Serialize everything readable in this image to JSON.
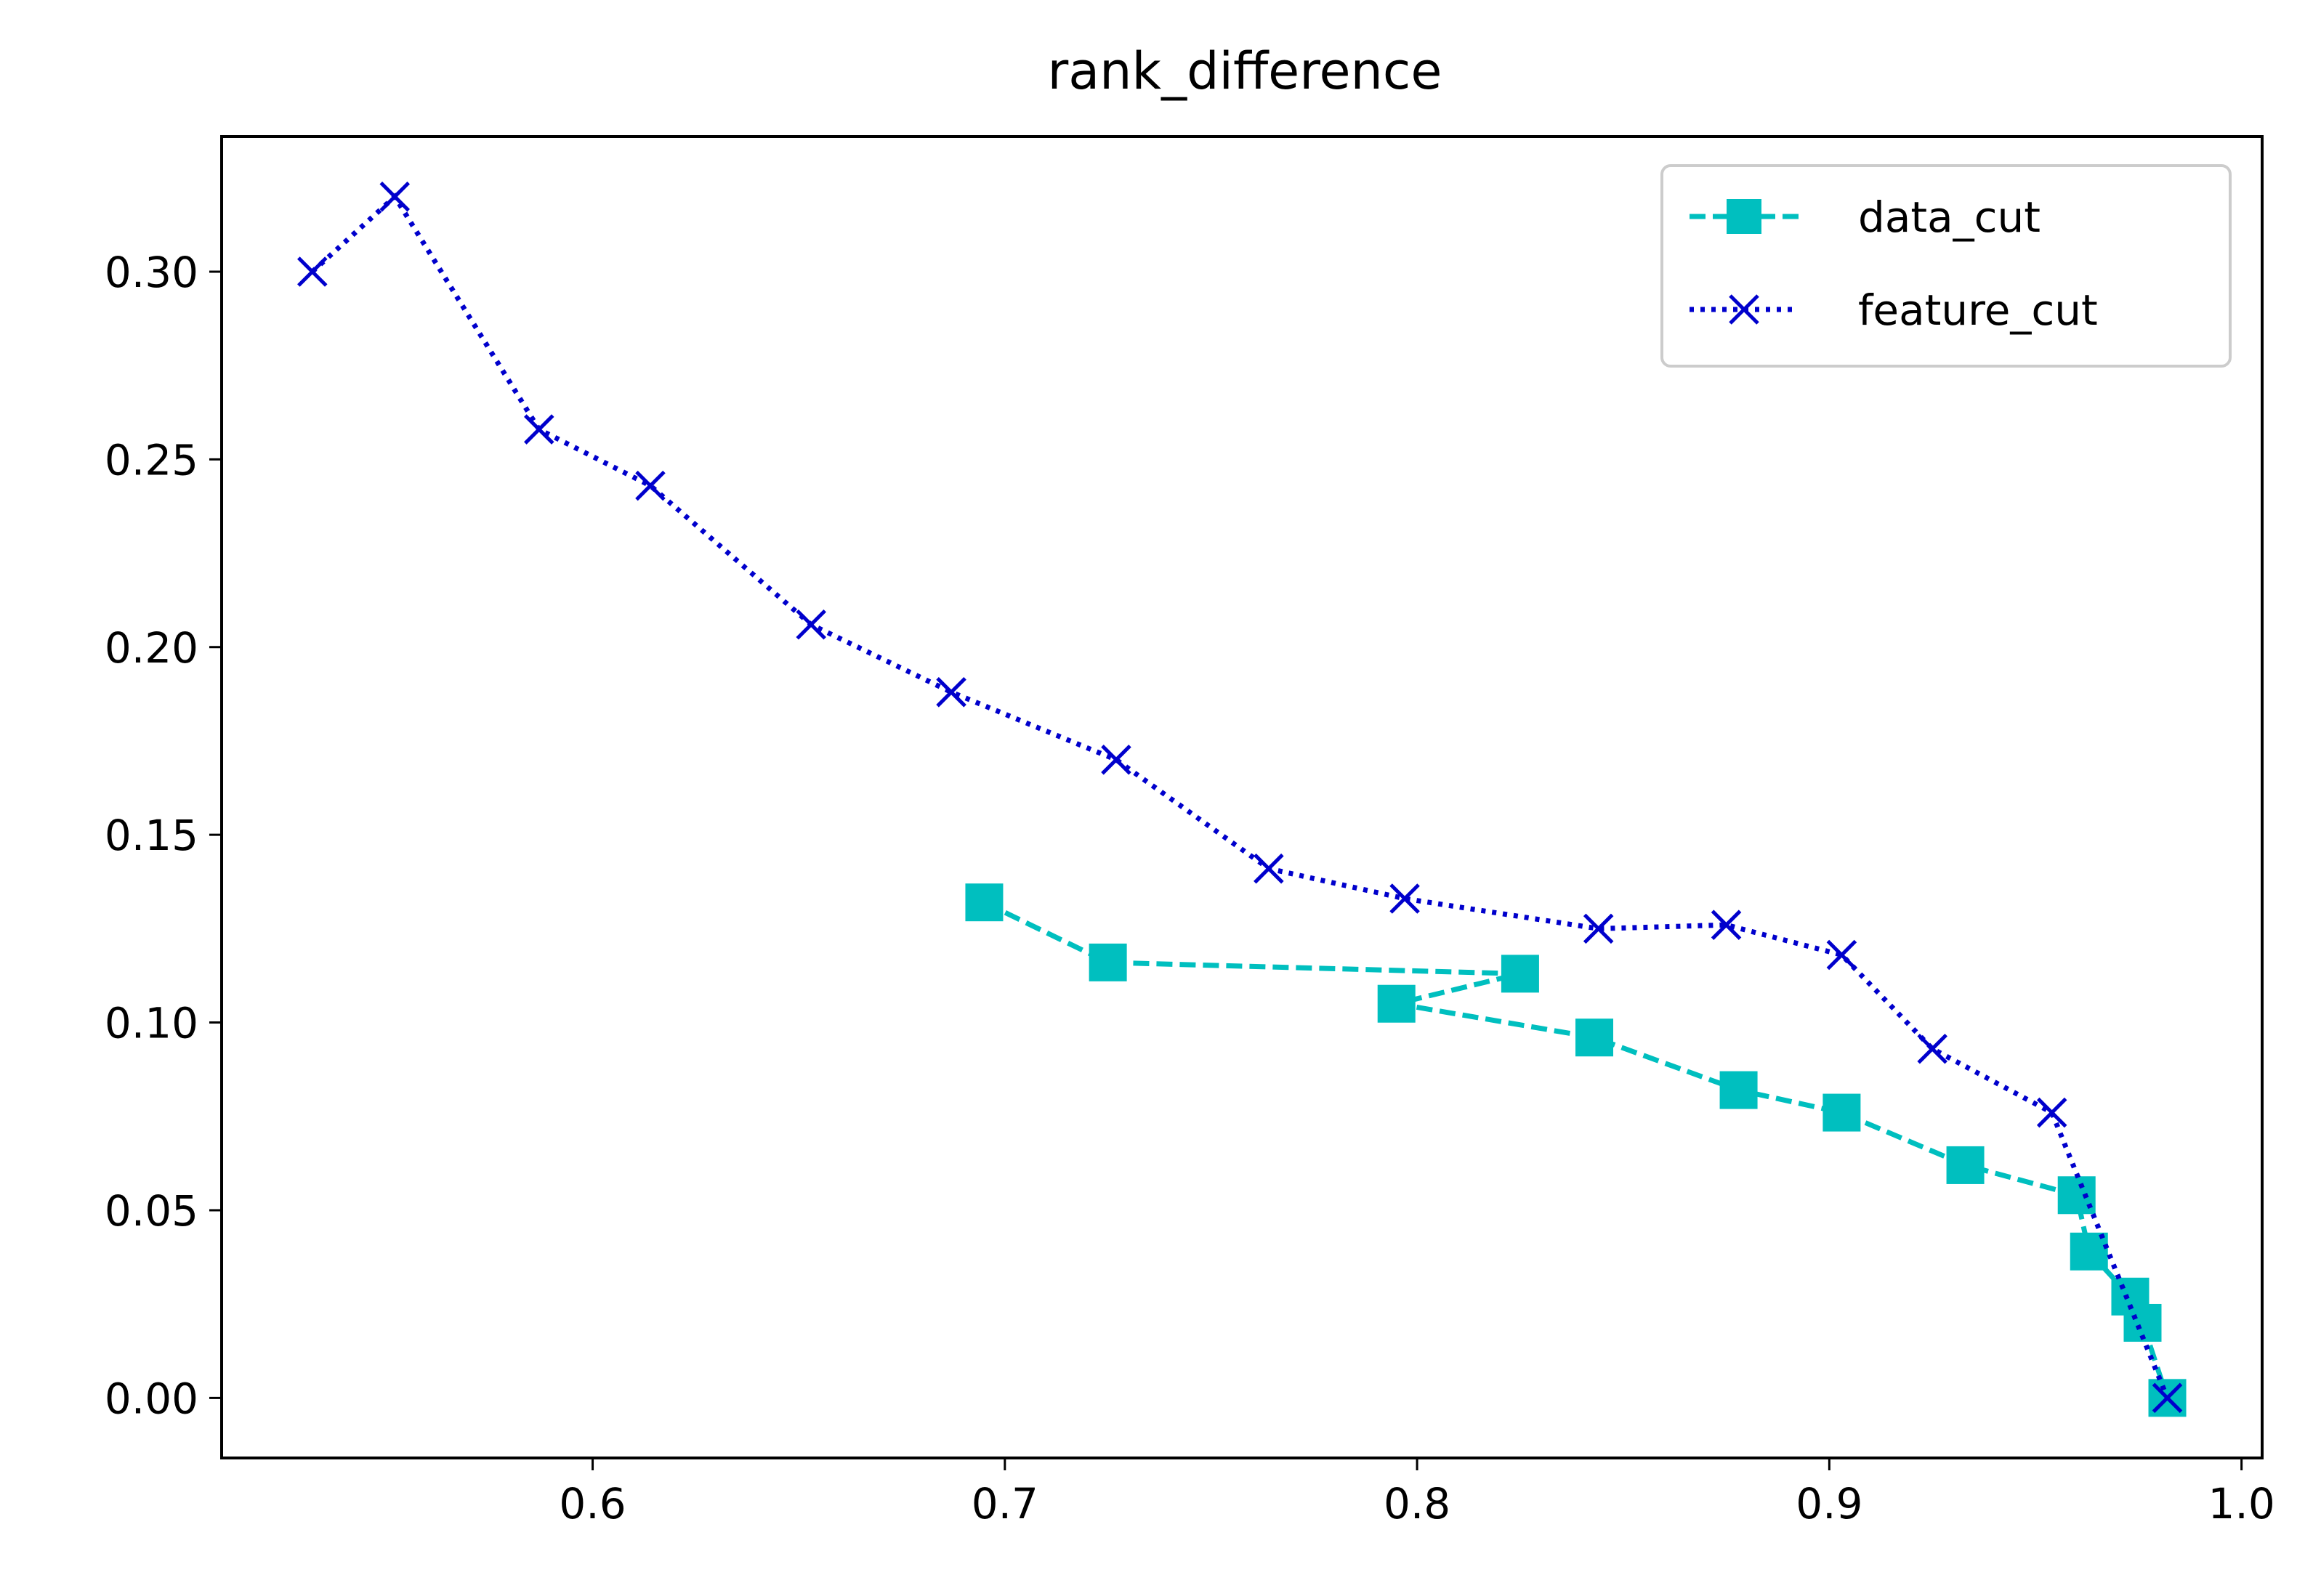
{
  "chart_data": {
    "type": "line",
    "title": "rank_difference",
    "xlabel": "",
    "ylabel": "",
    "xlim": [
      0.51,
      1.005
    ],
    "ylim": [
      -0.016,
      0.336
    ],
    "x_ticks": [
      0.6,
      0.7,
      0.8,
      0.9,
      1.0
    ],
    "x_tick_labels": [
      "0.6",
      "0.7",
      "0.8",
      "0.9",
      "1.0"
    ],
    "y_ticks": [
      0.0,
      0.05,
      0.1,
      0.15,
      0.2,
      0.25,
      0.3
    ],
    "y_tick_labels": [
      "0.00",
      "0.05",
      "0.10",
      "0.15",
      "0.20",
      "0.25",
      "0.30"
    ],
    "grid": false,
    "legend_position": "top-right",
    "series": [
      {
        "name": "data_cut",
        "color": "#00bfbf",
        "line_style": "dashed",
        "marker": "square",
        "x": [
          0.695,
          0.725,
          0.825,
          0.795,
          0.843,
          0.878,
          0.903,
          0.933,
          0.96,
          0.963,
          0.973,
          0.976,
          0.982
        ],
        "y": [
          0.132,
          0.116,
          0.113,
          0.105,
          0.096,
          0.082,
          0.076,
          0.062,
          0.054,
          0.039,
          0.027,
          0.02,
          0.0
        ]
      },
      {
        "name": "feature_cut",
        "color": "#0000cc",
        "line_style": "dotted",
        "marker": "x",
        "x": [
          0.532,
          0.552,
          0.587,
          0.614,
          0.653,
          0.687,
          0.727,
          0.764,
          0.797,
          0.844,
          0.875,
          0.903,
          0.925,
          0.954,
          0.982
        ],
        "y": [
          0.3,
          0.32,
          0.258,
          0.243,
          0.206,
          0.188,
          0.17,
          0.141,
          0.133,
          0.125,
          0.126,
          0.118,
          0.093,
          0.076,
          0.0
        ]
      }
    ]
  }
}
